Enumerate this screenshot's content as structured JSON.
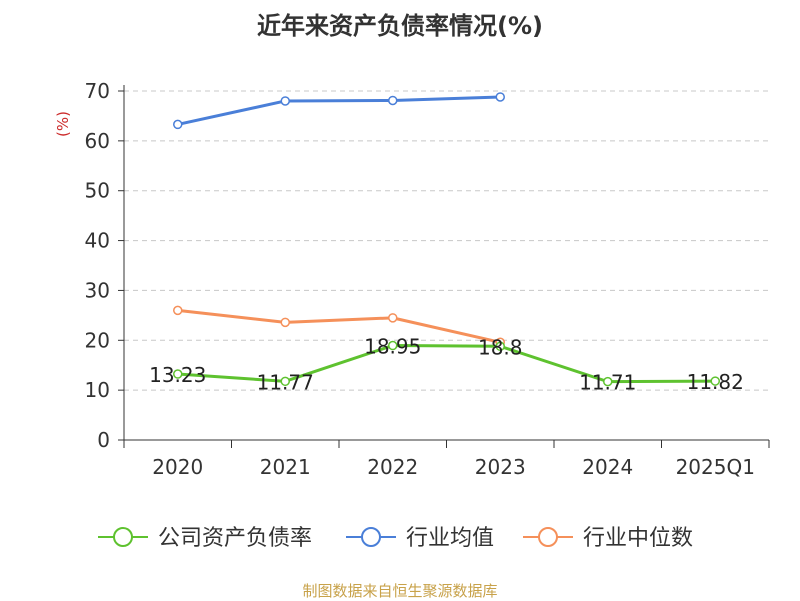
{
  "chart_data": {
    "type": "line",
    "title": "近年来资产负债率情况(%)",
    "ylabel": "(%)",
    "xlabel": "",
    "categories": [
      "2020",
      "2021",
      "2022",
      "2023",
      "2024",
      "2025Q1"
    ],
    "ylim": [
      0,
      70
    ],
    "yticks": [
      0,
      10,
      20,
      30,
      40,
      50,
      60,
      70
    ],
    "grid": true,
    "legend_position": "bottom",
    "series": [
      {
        "name": "公司资产负债率",
        "color": "#5ec22f",
        "values": [
          13.23,
          11.77,
          18.95,
          18.8,
          11.71,
          11.82
        ],
        "labels": [
          "13.23",
          "11.77",
          "18.95",
          "18.8",
          "11.71",
          "11.82"
        ]
      },
      {
        "name": "行业均值",
        "color": "#4a7fd8",
        "values": [
          63.3,
          68.0,
          68.1,
          68.8,
          null,
          null
        ]
      },
      {
        "name": "行业中位数",
        "color": "#f5905a",
        "values": [
          26.0,
          23.6,
          24.5,
          19.6,
          null,
          null
        ]
      }
    ]
  },
  "source": "制图数据来自恒生聚源数据库"
}
